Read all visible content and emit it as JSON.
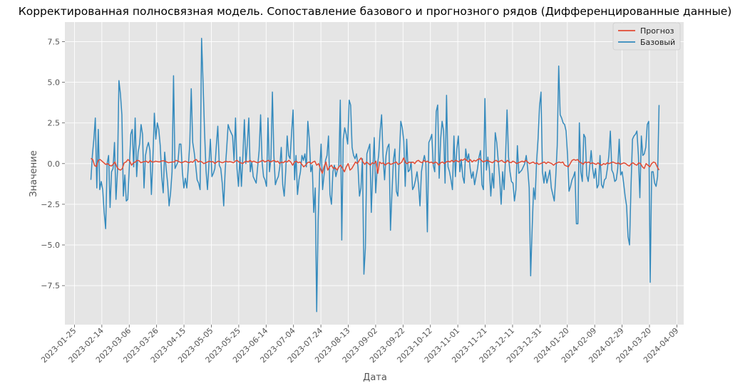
{
  "chart_data": {
    "type": "line",
    "title": "Корректированная полносвязная модель. Сопоставление базового и прогнозного рядов (Дифференцированные данные)",
    "xlabel": "Дата",
    "ylabel": "Значение",
    "x_start": "2023-02-06",
    "x_end": "2024-03-27",
    "xlim": [
      "2023-01-18",
      "2024-04-14"
    ],
    "ylim": [
      -9.9,
      8.7
    ],
    "xticks": [
      "2023-01-25",
      "2023-02-14",
      "2023-03-06",
      "2023-03-26",
      "2023-04-15",
      "2023-05-05",
      "2023-05-25",
      "2023-06-14",
      "2023-07-04",
      "2023-07-24",
      "2023-08-13",
      "2023-09-02",
      "2023-09-22",
      "2023-10-12",
      "2023-11-01",
      "2023-11-21",
      "2023-12-11",
      "2023-12-31",
      "2024-01-20",
      "2024-02-09",
      "2024-02-29",
      "2024-03-20",
      "2024-04-09"
    ],
    "yticks": [
      "−7.5",
      "−5.0",
      "−2.5",
      "0.0",
      "2.5",
      "5.0",
      "7.5"
    ],
    "ytick_values": [
      -7.5,
      -5.0,
      -2.5,
      0.0,
      2.5,
      5.0,
      7.5
    ],
    "grid": true,
    "legend_position": "top-right",
    "colors": {
      "background": "#e5e5e5",
      "grid": "#ffffff",
      "forecast": "#e24a33",
      "base": "#348abd"
    },
    "series": [
      {
        "name": "Прогноз",
        "color": "#e24a33",
        "values": [
          0.32,
          0.25,
          -0.12,
          -0.18,
          0.2,
          0.25,
          0.15,
          0.05,
          -0.05,
          0.0,
          -0.1,
          -0.15,
          -0.05,
          0.1,
          -0.2,
          -0.35,
          -0.4,
          -0.3,
          0.05,
          0.1,
          0.25,
          0.15,
          -0.1,
          0.05,
          0.1,
          0.2,
          0.18,
          0.05,
          0.1,
          0.12,
          0.15,
          0.05,
          0.2,
          0.1,
          0.1,
          0.15,
          0.12,
          0.1,
          0.15,
          0.18,
          0.15,
          0.1,
          0.05,
          0.08,
          0.1,
          0.1,
          0.2,
          0.15,
          0.1,
          0.05,
          0.1,
          0.15,
          0.1,
          0.05,
          0.12,
          0.08,
          0.2,
          0.25,
          0.1,
          0.15,
          0.1,
          0.0,
          0.05,
          0.1,
          0.15,
          0.1,
          0.12,
          0.0,
          0.1,
          0.15,
          0.1,
          0.05,
          0.1,
          0.15,
          0.1,
          0.12,
          0.1,
          0.05,
          0.15,
          0.2,
          0.1,
          0.05,
          0.0,
          0.1,
          0.15,
          0.1,
          0.2,
          0.1,
          0.15,
          0.1,
          0.05,
          0.1,
          0.15,
          0.2,
          0.1,
          0.15,
          0.2,
          0.1,
          0.15,
          0.2,
          0.1,
          0.15,
          0.0,
          0.1,
          0.05,
          0.15,
          0.1,
          0.2,
          0.1,
          -0.1,
          0.1,
          0.15,
          0.05,
          0.1,
          -0.05,
          -0.2,
          -0.1,
          0.05,
          0.1,
          0.0,
          0.1,
          0.15,
          -0.1,
          0.0,
          -0.3,
          -0.6,
          -0.2,
          0.1,
          -0.4,
          -0.2,
          -0.1,
          -0.3,
          -0.25,
          -0.4,
          -0.2,
          -0.1,
          -0.3,
          -0.5,
          -0.2,
          0.0,
          -0.4,
          -0.3,
          -0.1,
          0.1,
          0.0,
          0.2,
          0.35,
          0.1,
          -0.05,
          0.1,
          0.0,
          -0.1,
          0.05,
          0.0,
          0.15,
          -0.6,
          0.1,
          0.0,
          0.05,
          -0.1,
          0.0,
          0.05,
          -0.05,
          0.0,
          0.05,
          0.1,
          -0.05,
          0.0,
          0.1,
          0.35,
          0.05,
          0.0,
          0.1,
          0.05,
          0.1,
          0.0,
          0.15,
          0.2,
          0.1,
          0.05,
          0.2,
          0.1,
          0.15,
          0.05,
          0.1,
          0.0,
          0.1,
          0.05,
          -0.1,
          0.05,
          0.1,
          0.0,
          0.1,
          0.15,
          0.1,
          0.2,
          0.1,
          0.2,
          0.15,
          0.1,
          0.25,
          0.2,
          0.3,
          0.2,
          0.1,
          0.25,
          0.1,
          0.2,
          0.15,
          0.25,
          0.3,
          0.2,
          0.1,
          0.15,
          0.2,
          0.15,
          0.1,
          0.05,
          0.15,
          0.2,
          0.1,
          0.15,
          0.2,
          0.1,
          0.05,
          0.2,
          0.1,
          0.05,
          0.15,
          0.1,
          0.0,
          0.05,
          0.1,
          0.15,
          0.1,
          0.2,
          0.1,
          0.0,
          0.05,
          0.1,
          0.0,
          0.05,
          -0.05,
          0.0,
          0.05,
          0.1,
          0.0,
          0.1,
          0.05,
          0.0,
          -0.1,
          0.0,
          0.05,
          0.1,
          0.05,
          0.1,
          -0.1,
          -0.15,
          -0.2,
          0.0,
          0.2,
          0.25,
          0.2,
          0.25,
          0.1,
          0.05,
          -0.05,
          0.1,
          0.05,
          0.1,
          0.0,
          0.05,
          0.0,
          -0.05,
          0.05,
          -0.05,
          -0.1,
          0.0,
          -0.05,
          0.05,
          0.0,
          0.05,
          0.1,
          0.05,
          0.0,
          0.05,
          -0.05,
          0.0,
          0.05,
          0.0,
          -0.1,
          -0.15,
          0.0,
          0.05,
          -0.05,
          -0.1,
          0.05,
          0.0,
          -0.2,
          -0.3,
          0.0,
          -0.1,
          -0.2,
          0.0,
          0.1,
          0.05,
          -0.2,
          -0.4
        ]
      },
      {
        "name": "Базовый",
        "color": "#348abd",
        "values": [
          -1.0,
          0.5,
          1.5,
          2.8,
          -1.5,
          2.1,
          -1.6,
          -1.1,
          -1.6,
          -3.0,
          -4.0,
          0.0,
          0.5,
          -2.7,
          -0.5,
          -0.3,
          1.3,
          -2.2,
          -0.5,
          5.1,
          4.3,
          3.0,
          -2.0,
          -0.7,
          -2.3,
          -2.2,
          -0.3,
          1.8,
          2.1,
          -0.2,
          2.8,
          -0.8,
          0.7,
          1.2,
          2.4,
          1.8,
          -1.5,
          0.5,
          1.0,
          1.3,
          0.8,
          -1.9,
          0.3,
          3.1,
          1.5,
          2.5,
          2.1,
          1.1,
          -0.8,
          -1.8,
          0.7,
          -0.3,
          -1.2,
          -2.6,
          -1.8,
          -0.5,
          5.4,
          -0.3,
          -0.1,
          0.1,
          1.2,
          1.2,
          -0.5,
          -1.5,
          -0.9,
          -1.5,
          -0.2,
          1.2,
          4.6,
          1.3,
          0.7,
          -0.1,
          -1.0,
          -1.2,
          -1.6,
          7.7,
          5.0,
          2.0,
          -0.4,
          -1.6,
          0.0,
          1.5,
          -0.8,
          -0.6,
          -0.3,
          1.1,
          2.3,
          -0.1,
          -0.3,
          -1.2,
          -2.6,
          -0.4,
          0.9,
          2.4,
          2.1,
          1.9,
          1.7,
          0.2,
          2.8,
          -0.3,
          -1.4,
          0.4,
          -1.4,
          0.5,
          2.7,
          0.0,
          1.2,
          2.8,
          -0.5,
          0.1,
          -0.8,
          -1.0,
          -1.2,
          -0.2,
          0.8,
          3.0,
          0.1,
          -0.8,
          -1.0,
          -1.4,
          2.8,
          -0.5,
          0.3,
          4.4,
          0.5,
          -1.3,
          -1.0,
          -0.8,
          -0.2,
          1.0,
          -1.3,
          -2.0,
          -0.5,
          1.7,
          0.5,
          0.3,
          1.9,
          3.3,
          -1.0,
          0.5,
          -1.9,
          -1.0,
          -0.5,
          0.5,
          0.2,
          0.6,
          -0.2,
          2.6,
          1.5,
          -0.5,
          -0.1,
          -3.0,
          -1.5,
          -9.1,
          -3.5,
          -0.5,
          1.2,
          -1.6,
          -0.7,
          0.2,
          0.5,
          1.7,
          -1.9,
          -2.5,
          -0.5,
          -0.1,
          -0.8,
          -0.4,
          -0.2,
          3.9,
          -4.7,
          1.5,
          2.2,
          1.8,
          1.2,
          3.9,
          3.6,
          1.0,
          0.5,
          0.3,
          0.6,
          -0.2,
          -2.0,
          -1.5,
          0.3,
          -6.8,
          -5.2,
          0.6,
          0.9,
          1.2,
          -3.0,
          -0.5,
          1.6,
          -1.8,
          -0.2,
          0.5,
          2.0,
          3.0,
          0.4,
          -1.0,
          0.5,
          1.0,
          1.2,
          -4.1,
          -1.8,
          0.2,
          0.9,
          -1.7,
          -2.0,
          0.4,
          2.6,
          2.2,
          1.4,
          -1.4,
          1.5,
          -0.5,
          -0.4,
          0.1,
          -1.6,
          -1.4,
          -1.0,
          -0.5,
          -1.3,
          -2.6,
          -0.5,
          0.1,
          0.5,
          0.0,
          -4.2,
          1.3,
          1.5,
          1.8,
          -0.1,
          -0.5,
          3.2,
          3.6,
          -0.9,
          1.5,
          2.6,
          2.0,
          -1.2,
          4.2,
          -0.2,
          -0.5,
          -1.0,
          -1.6,
          1.7,
          -0.8,
          0.9,
          1.7,
          -0.5,
          0.2,
          -0.8,
          -1.2,
          0.9,
          0.2,
          0.6,
          -0.3,
          -0.9,
          -0.5,
          -1.3,
          -0.8,
          -0.3,
          0.4,
          0.8,
          -1.3,
          -1.6,
          4.0,
          -0.4,
          0.4,
          -0.3,
          -2.0,
          -0.6,
          -1.5,
          1.9,
          1.3,
          0.2,
          -0.9,
          -2.5,
          -0.5,
          -1.6,
          0.4,
          3.3,
          0.4,
          -0.5,
          -1.1,
          -1.2,
          -2.3,
          -1.6,
          1.1,
          -0.6,
          -0.5,
          -0.4,
          -0.2,
          0.0,
          0.5,
          -0.3,
          -1.5,
          -6.9,
          -4.0,
          -1.5,
          -2.2,
          0.1,
          1.5,
          3.5,
          4.4,
          -0.5,
          -1.2,
          -0.5,
          -1.2,
          -0.8,
          -0.4,
          -1.5,
          -1.9,
          -2.3,
          -0.8,
          1.1,
          6.0,
          3.0,
          2.8,
          2.5,
          2.4,
          2.0,
          0.5,
          -1.7,
          -1.4,
          -1.0,
          -0.8,
          -0.5,
          -3.7,
          -3.7,
          2.5,
          -0.5,
          -1.1,
          1.8,
          1.6,
          -0.7,
          -1.1,
          -0.2,
          0.8,
          -0.3,
          -0.9,
          -0.3,
          -1.5,
          -1.3,
          0.5,
          -1.3,
          -1.5,
          -1.0,
          -0.9,
          -0.3,
          0.5,
          2.0,
          -0.4,
          -0.6,
          -1.1,
          -1.0,
          -0.3,
          1.5,
          -0.7,
          -0.5,
          -1.2,
          -2.0,
          -2.6,
          -4.5,
          -5.0,
          -1.4,
          1.5,
          1.7,
          1.8,
          2.0,
          0.5,
          -2.1,
          1.7,
          0.5,
          0.6,
          1.0,
          2.4,
          2.6,
          -7.3,
          -0.5,
          -0.5,
          -1.2,
          -1.4,
          -0.8,
          3.6
        ]
      }
    ]
  }
}
